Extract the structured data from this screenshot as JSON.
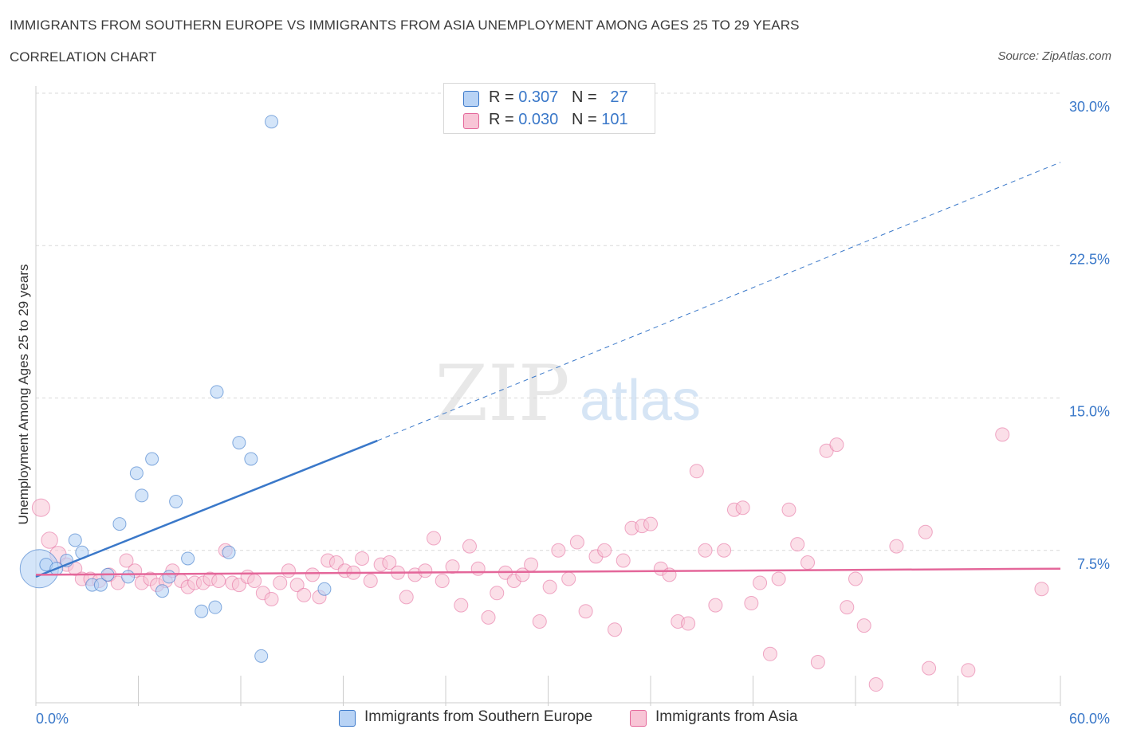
{
  "title": "IMMIGRANTS FROM SOUTHERN EUROPE VS IMMIGRANTS FROM ASIA UNEMPLOYMENT AMONG AGES 25 TO 29 YEARS",
  "subtitle": "CORRELATION CHART",
  "source": "Source: ZipAtlas.com",
  "watermark": {
    "zip": "ZIP",
    "atlas": "atlas"
  },
  "colors": {
    "blue": "#3a78c9",
    "blue_fill": "#b8d3f5",
    "pink": "#e4679a",
    "pink_fill": "#f8c5d6",
    "grid": "#d9d9d9",
    "tick_text": "#3a78c9"
  },
  "legend_top": {
    "rows": [
      {
        "r_label": "R =",
        "r_value": "0.307",
        "n_label": "N =",
        "n_value": "27"
      },
      {
        "r_label": "R =",
        "r_value": "0.030",
        "n_label": "N =",
        "n_value": "101"
      }
    ]
  },
  "legend_bottom": {
    "series1": "Immigrants from Southern Europe",
    "series2": "Immigrants from Asia"
  },
  "chart_data": {
    "type": "scatter",
    "title": "IMMIGRANTS FROM SOUTHERN EUROPE VS IMMIGRANTS FROM ASIA UNEMPLOYMENT AMONG AGES 25 TO 29 YEARS",
    "ylabel": "Unemployment Among Ages 25 to 29 years",
    "xlabel": "",
    "xlim": [
      0,
      60
    ],
    "ylim": [
      0,
      30
    ],
    "x_tick_labels": [
      "0.0%",
      "60.0%"
    ],
    "y_ticks": [
      7.5,
      15.0,
      22.5,
      30.0
    ],
    "y_tick_labels": [
      "7.5%",
      "15.0%",
      "22.5%",
      "30.0%"
    ],
    "grid": "horizontal dashed",
    "legend_placement": "top-center and bottom",
    "series": [
      {
        "name": "Immigrants from Southern Europe",
        "color": "#3a78c9",
        "R": 0.307,
        "N": 27,
        "trend": {
          "x": [
            0,
            20
          ],
          "y": [
            6.2,
            12.9
          ],
          "dashed_extension_to": [
            60,
            26.6
          ]
        },
        "points": [
          [
            0.2,
            6.6,
            3
          ],
          [
            0.6,
            6.8,
            1
          ],
          [
            1.2,
            6.6,
            1
          ],
          [
            1.8,
            7.0,
            1
          ],
          [
            2.3,
            8.0,
            1
          ],
          [
            2.7,
            7.4,
            1
          ],
          [
            3.3,
            5.8,
            1
          ],
          [
            3.8,
            5.8,
            1
          ],
          [
            4.2,
            6.3,
            1
          ],
          [
            4.9,
            8.8,
            1
          ],
          [
            5.4,
            6.2,
            1
          ],
          [
            5.9,
            11.3,
            1
          ],
          [
            6.2,
            10.2,
            1
          ],
          [
            6.8,
            12.0,
            1
          ],
          [
            7.4,
            5.5,
            1
          ],
          [
            7.8,
            6.2,
            1
          ],
          [
            8.2,
            9.9,
            1
          ],
          [
            8.9,
            7.1,
            1
          ],
          [
            9.7,
            4.5,
            1
          ],
          [
            10.5,
            4.7,
            1
          ],
          [
            10.6,
            15.3,
            1
          ],
          [
            11.3,
            7.4,
            1
          ],
          [
            11.9,
            12.8,
            1
          ],
          [
            12.6,
            12.0,
            1
          ],
          [
            13.2,
            2.3,
            1
          ],
          [
            13.8,
            28.6,
            1
          ],
          [
            16.9,
            5.6,
            1
          ]
        ]
      },
      {
        "name": "Immigrants from Asia",
        "color": "#e4679a",
        "R": 0.03,
        "N": 101,
        "trend": {
          "x": [
            0,
            60
          ],
          "y": [
            6.3,
            6.6
          ]
        },
        "points": [
          [
            0.3,
            9.6,
            1.3
          ],
          [
            0.8,
            8.0,
            1.2
          ],
          [
            1.3,
            7.3,
            1.2
          ],
          [
            1.8,
            6.8,
            1
          ],
          [
            2.3,
            6.6,
            1
          ],
          [
            2.7,
            6.1,
            1
          ],
          [
            3.2,
            6.1,
            1
          ],
          [
            3.7,
            6.0,
            1
          ],
          [
            4.3,
            6.3,
            1
          ],
          [
            4.8,
            5.9,
            1
          ],
          [
            5.3,
            7.0,
            1
          ],
          [
            5.8,
            6.5,
            1
          ],
          [
            6.2,
            5.9,
            1
          ],
          [
            6.7,
            6.1,
            1
          ],
          [
            7.1,
            5.8,
            1
          ],
          [
            7.6,
            6.0,
            1
          ],
          [
            8.0,
            6.5,
            1
          ],
          [
            8.5,
            6.0,
            1
          ],
          [
            8.9,
            5.7,
            1
          ],
          [
            9.3,
            5.9,
            1
          ],
          [
            9.8,
            5.9,
            1
          ],
          [
            10.2,
            6.1,
            1
          ],
          [
            10.7,
            6.0,
            1
          ],
          [
            11.1,
            7.5,
            1
          ],
          [
            11.5,
            5.9,
            1
          ],
          [
            11.9,
            5.8,
            1
          ],
          [
            12.4,
            6.2,
            1
          ],
          [
            12.8,
            6.0,
            1
          ],
          [
            13.3,
            5.4,
            1
          ],
          [
            13.8,
            5.1,
            1
          ],
          [
            14.3,
            5.9,
            1
          ],
          [
            14.8,
            6.5,
            1
          ],
          [
            15.3,
            5.8,
            1
          ],
          [
            15.7,
            5.3,
            1
          ],
          [
            16.2,
            6.3,
            1
          ],
          [
            16.6,
            5.2,
            1
          ],
          [
            17.1,
            7.0,
            1
          ],
          [
            17.6,
            6.9,
            1
          ],
          [
            18.1,
            6.5,
            1
          ],
          [
            18.6,
            6.4,
            1
          ],
          [
            19.1,
            7.1,
            1
          ],
          [
            19.6,
            6.0,
            1
          ],
          [
            20.2,
            6.8,
            1
          ],
          [
            20.7,
            6.9,
            1
          ],
          [
            21.2,
            6.4,
            1
          ],
          [
            21.7,
            5.2,
            1
          ],
          [
            22.2,
            6.3,
            1
          ],
          [
            22.8,
            6.5,
            1
          ],
          [
            23.3,
            8.1,
            1
          ],
          [
            23.8,
            6.0,
            1
          ],
          [
            24.4,
            6.7,
            1
          ],
          [
            24.9,
            4.8,
            1
          ],
          [
            25.4,
            7.7,
            1
          ],
          [
            25.9,
            6.6,
            1
          ],
          [
            26.5,
            4.2,
            1
          ],
          [
            27.0,
            5.4,
            1
          ],
          [
            27.5,
            6.4,
            1
          ],
          [
            28.0,
            6.0,
            1
          ],
          [
            28.5,
            6.3,
            1
          ],
          [
            29.0,
            6.8,
            1
          ],
          [
            29.5,
            4.0,
            1
          ],
          [
            30.1,
            5.7,
            1
          ],
          [
            30.6,
            7.5,
            1
          ],
          [
            31.2,
            6.1,
            1
          ],
          [
            31.7,
            7.9,
            1
          ],
          [
            32.2,
            4.5,
            1
          ],
          [
            32.8,
            7.2,
            1
          ],
          [
            33.3,
            7.5,
            1
          ],
          [
            33.9,
            3.6,
            1
          ],
          [
            34.4,
            7.0,
            1
          ],
          [
            34.9,
            8.6,
            1
          ],
          [
            35.5,
            8.7,
            1
          ],
          [
            36.0,
            8.8,
            1
          ],
          [
            36.6,
            6.6,
            1
          ],
          [
            37.1,
            6.3,
            1
          ],
          [
            37.6,
            4.0,
            1
          ],
          [
            38.2,
            3.9,
            1
          ],
          [
            38.7,
            11.4,
            1
          ],
          [
            39.2,
            7.5,
            1
          ],
          [
            39.8,
            4.8,
            1
          ],
          [
            40.3,
            7.5,
            1
          ],
          [
            40.9,
            9.5,
            1
          ],
          [
            41.4,
            9.6,
            1
          ],
          [
            41.9,
            4.9,
            1
          ],
          [
            42.4,
            5.9,
            1
          ],
          [
            43.0,
            2.4,
            1
          ],
          [
            43.5,
            6.1,
            1
          ],
          [
            44.1,
            9.5,
            1
          ],
          [
            44.6,
            7.8,
            1
          ],
          [
            45.2,
            6.9,
            1
          ],
          [
            45.8,
            2.0,
            1
          ],
          [
            46.3,
            12.4,
            1
          ],
          [
            46.9,
            12.7,
            1
          ],
          [
            47.5,
            4.7,
            1
          ],
          [
            48.0,
            6.1,
            1
          ],
          [
            48.5,
            3.8,
            1
          ],
          [
            49.2,
            0.9,
            1
          ],
          [
            50.4,
            7.7,
            1
          ],
          [
            52.1,
            8.4,
            1
          ],
          [
            52.3,
            1.7,
            1
          ],
          [
            54.6,
            1.6,
            1
          ],
          [
            56.6,
            13.2,
            1
          ],
          [
            58.9,
            5.6,
            1
          ]
        ]
      }
    ]
  }
}
